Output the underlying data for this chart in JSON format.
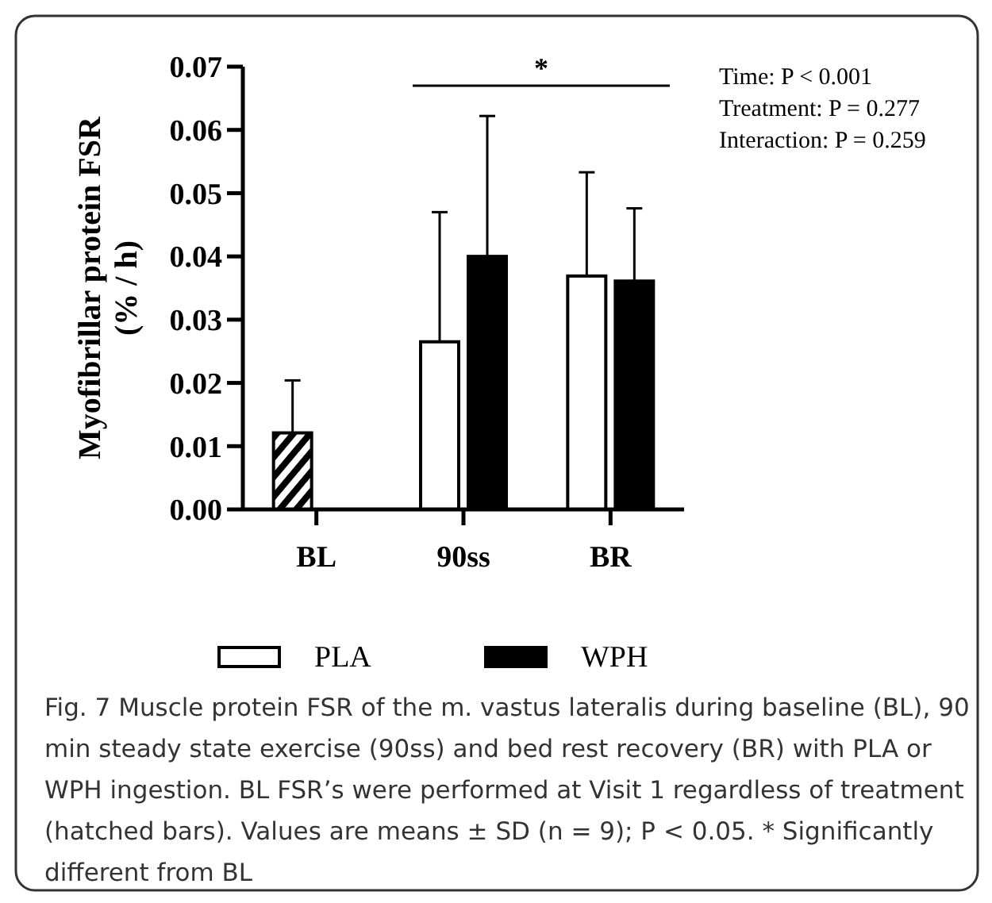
{
  "chart_data": {
    "type": "bar",
    "ylabel": "Myofibrillar protein FSR\n(% / h)",
    "categories": [
      "BL",
      "90ss",
      "BR"
    ],
    "series": [
      {
        "name": "PLA",
        "color": "#ffffff",
        "colors": [
          "#000000",
          "#ffffff",
          "#ffffff"
        ],
        "values": [
          0.0121,
          0.0265,
          0.0369
        ],
        "errors": [
          [
            0.0121,
            0.0204
          ],
          [
            0.0265,
            0.047
          ],
          [
            0.0369,
            0.0533
          ]
        ]
      },
      {
        "name": "WPH",
        "color": "#000000",
        "values": [
          null,
          0.04,
          0.0361
        ],
        "errors": [
          null,
          [
            0.04,
            0.0622
          ],
          [
            0.0361,
            0.0476
          ]
        ]
      }
    ],
    "ylim": [
      0,
      0.07
    ],
    "yticks": [
      {
        "value": 0,
        "label": "0.00"
      },
      {
        "value": 0.01,
        "label": "0.01"
      },
      {
        "value": 0.02,
        "label": "0.02"
      },
      {
        "value": 0.03,
        "label": "0.03"
      },
      {
        "value": 0.04,
        "label": "0.04"
      },
      {
        "value": 0.05,
        "label": "0.05"
      },
      {
        "value": 0.06,
        "label": "0.06"
      },
      {
        "value": 0.07,
        "label": "0.07"
      }
    ],
    "grid": false,
    "legend": "bottom",
    "annotations": [
      "*",
      "Time: P < 0.001",
      "Treatment: P = 0.277",
      "Interaction: P = 0.259",
      "Fig. 7 Muscle protein FSR of the m. vastus lateralis during baseline (BL), 90 min steady state exercise (90ss) and bed rest recovery (BR) with PLA or WPH ingestion. BL FSR’s were performed at Visit 1 regardless of treatment (hatched bars). Values are means ± SD (n = 9); P < 0.05. * Significantly different from BL"
    ]
  }
}
